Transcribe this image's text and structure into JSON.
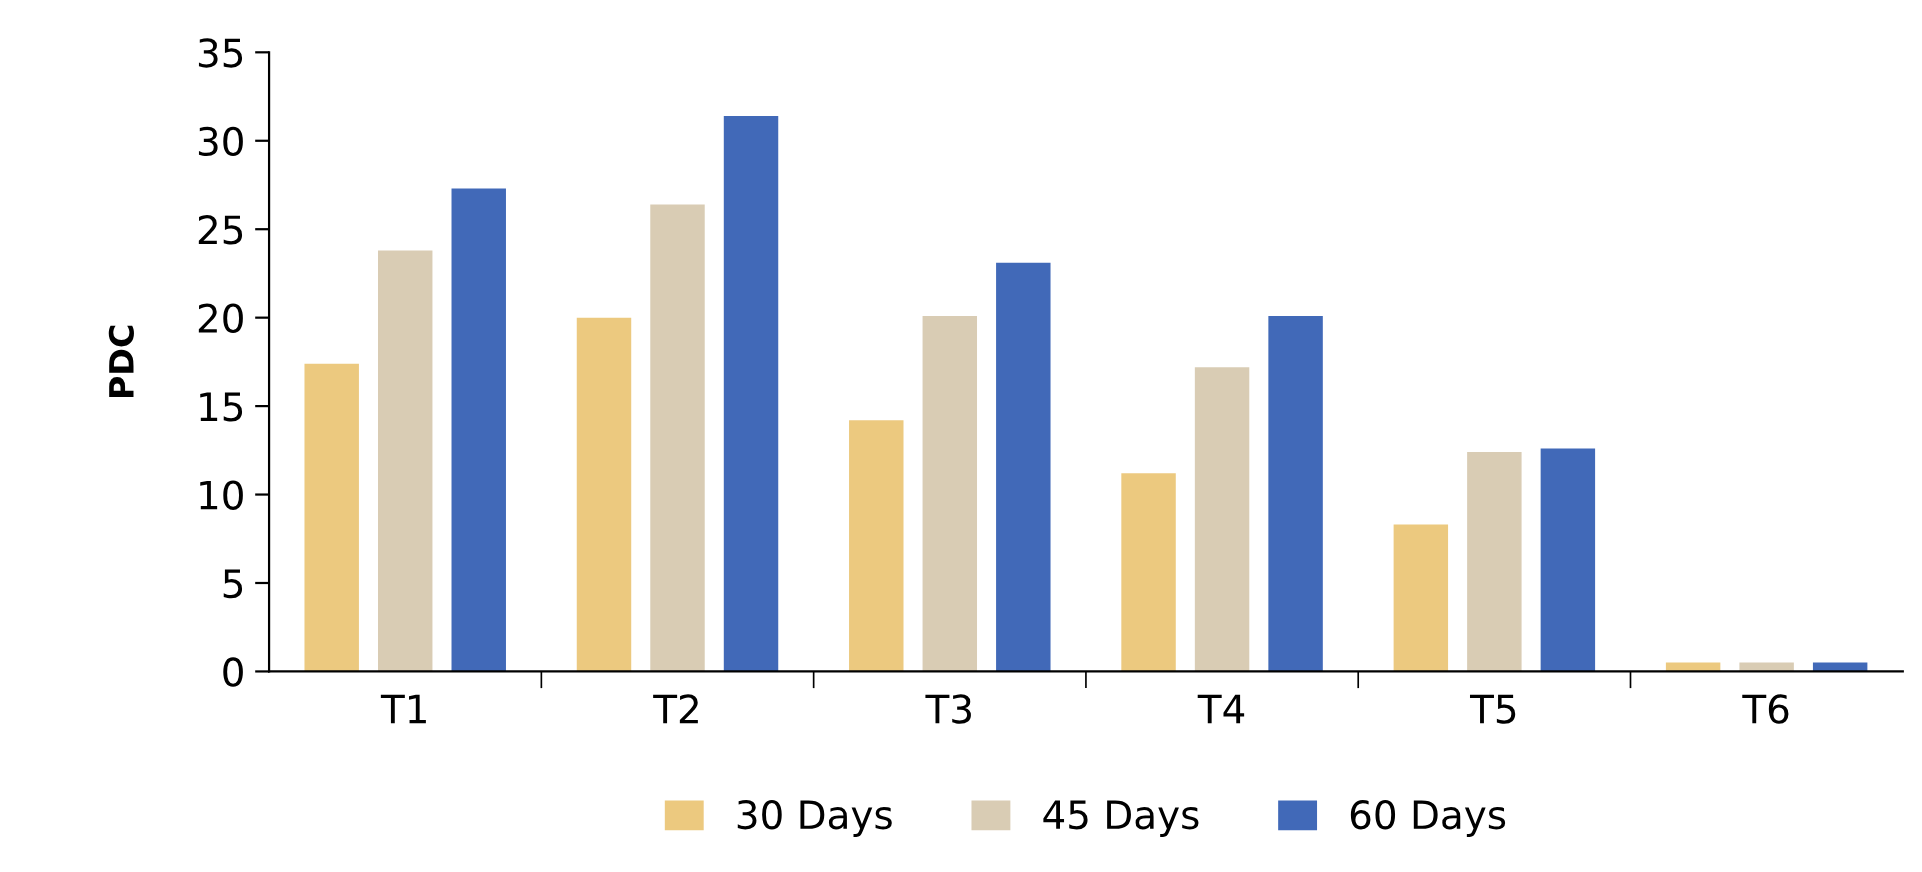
{
  "chart_data": {
    "type": "bar",
    "ylabel": "PDC",
    "categories": [
      "T1",
      "T2",
      "T3",
      "T4",
      "T5",
      "T6"
    ],
    "series": [
      {
        "name": "30 Days",
        "color": "#ecc97f",
        "values": [
          17.4,
          20.0,
          14.2,
          11.2,
          8.3,
          0.5
        ]
      },
      {
        "name": "45 Days",
        "color": "#d9ccb4",
        "values": [
          23.8,
          26.4,
          20.1,
          17.2,
          12.4,
          0.5
        ]
      },
      {
        "name": "60 Days",
        "color": "#4169b8",
        "values": [
          27.3,
          31.4,
          23.1,
          20.1,
          12.6,
          0.5
        ]
      }
    ],
    "ylim": [
      0,
      35
    ],
    "yticks": [
      0,
      5,
      10,
      15,
      20,
      25,
      30,
      35
    ],
    "grid": false,
    "legend": "bottom"
  }
}
